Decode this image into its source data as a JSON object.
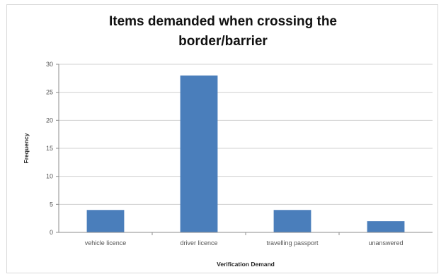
{
  "chart_data": {
    "type": "bar",
    "title_lines": [
      "Items demanded when crossing the",
      "border/barrier"
    ],
    "xlabel": "Verification Demand",
    "ylabel": "Frequency",
    "categories": [
      "vehicle licence",
      "driver licence",
      "travelling passport",
      "unanswered"
    ],
    "values": [
      4,
      28,
      4,
      2
    ],
    "ylim": [
      0,
      30
    ],
    "yticks": [
      0,
      5,
      10,
      15,
      20,
      25,
      30
    ],
    "grid": true,
    "legend": "none",
    "bar_color": "#4a7ebb",
    "grid_color": "#d0d0d0"
  }
}
